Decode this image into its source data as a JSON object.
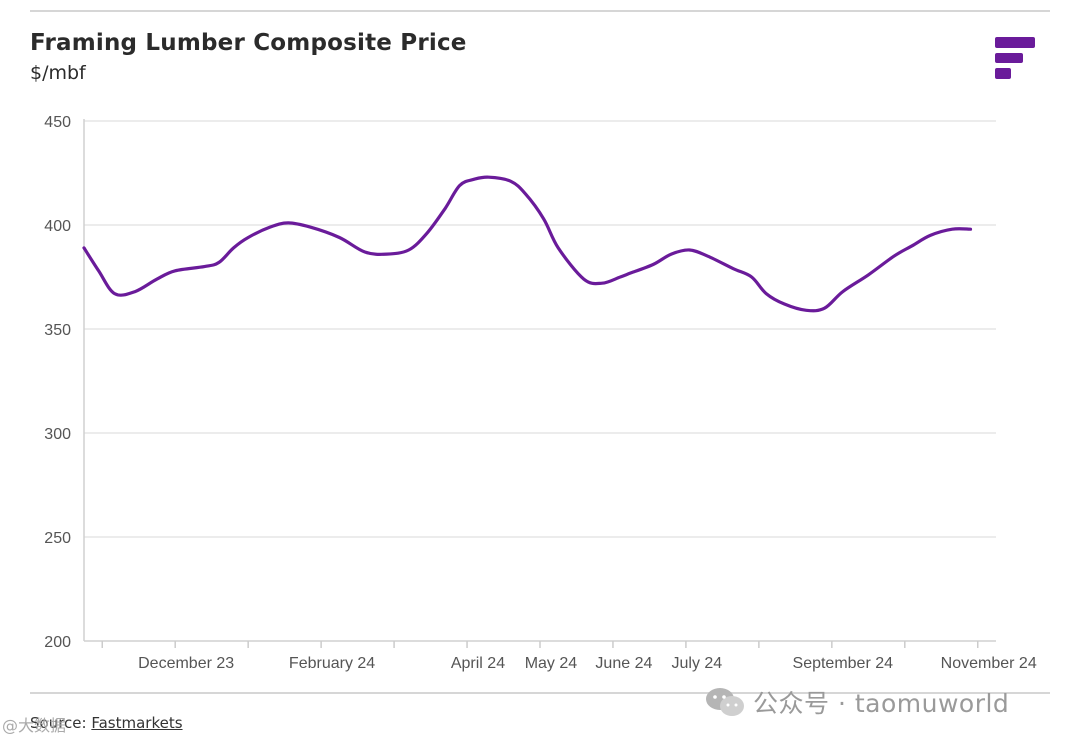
{
  "header": {
    "title": "Framing Lumber Composite Price",
    "unit": "$/mbf"
  },
  "logo": {
    "icon": "fastmarkets-logo-icon",
    "color": "#6a1b9a"
  },
  "footer": {
    "source_prefix": "Source: ",
    "source_link": "Fastmarkets"
  },
  "watermark": {
    "text": "公众号 · taomuworld",
    "left_text": "@大数据",
    "icon": "wechat-icon"
  },
  "chart_data": {
    "type": "line",
    "title": "Framing Lumber Composite Price",
    "ylabel": "$/mbf",
    "xlabel": "",
    "ylim": [
      200,
      450
    ],
    "yticks": [
      200,
      250,
      300,
      350,
      400,
      450
    ],
    "xlim": [
      0,
      12.5
    ],
    "line_color": "#6a1b9a",
    "grid": true,
    "x_ticks": [
      0.25,
      1.25,
      2.25,
      3.25,
      4.25,
      5.25,
      6.25,
      7.25,
      8.25,
      9.25,
      10.25,
      11.25,
      12.25
    ],
    "x_labels": [
      {
        "x": 1.4,
        "label": "December 23"
      },
      {
        "x": 3.4,
        "label": "February 24"
      },
      {
        "x": 5.4,
        "label": "April 24"
      },
      {
        "x": 6.4,
        "label": "May 24"
      },
      {
        "x": 7.4,
        "label": "June 24"
      },
      {
        "x": 8.4,
        "label": "July 24"
      },
      {
        "x": 10.4,
        "label": "September 24"
      },
      {
        "x": 12.4,
        "label": "November 24"
      }
    ],
    "series": [
      {
        "name": "Framing Lumber Composite Price",
        "x": [
          0,
          0.2,
          0.42,
          0.7,
          1.0,
          1.25,
          1.65,
          1.85,
          2.05,
          2.25,
          2.55,
          2.8,
          3.1,
          3.5,
          3.85,
          4.15,
          4.45,
          4.7,
          4.95,
          5.15,
          5.35,
          5.55,
          5.85,
          6.05,
          6.3,
          6.5,
          6.85,
          7.1,
          7.35,
          7.5,
          7.8,
          8.05,
          8.3,
          8.55,
          8.9,
          9.15,
          9.35,
          9.6,
          9.9,
          10.15,
          10.4,
          10.75,
          11.1,
          11.35,
          11.6,
          11.9,
          12.15
        ],
        "values": [
          389,
          378,
          367,
          368,
          374,
          378,
          380,
          382,
          389,
          394,
          399,
          401,
          399,
          394,
          387,
          386,
          388,
          396,
          408,
          419,
          422,
          423,
          421,
          415,
          403,
          389,
          374,
          372,
          375,
          377,
          381,
          386,
          388,
          385,
          379,
          375,
          367,
          362,
          359,
          360,
          368,
          376,
          385,
          390,
          395,
          398,
          398
        ]
      }
    ]
  }
}
